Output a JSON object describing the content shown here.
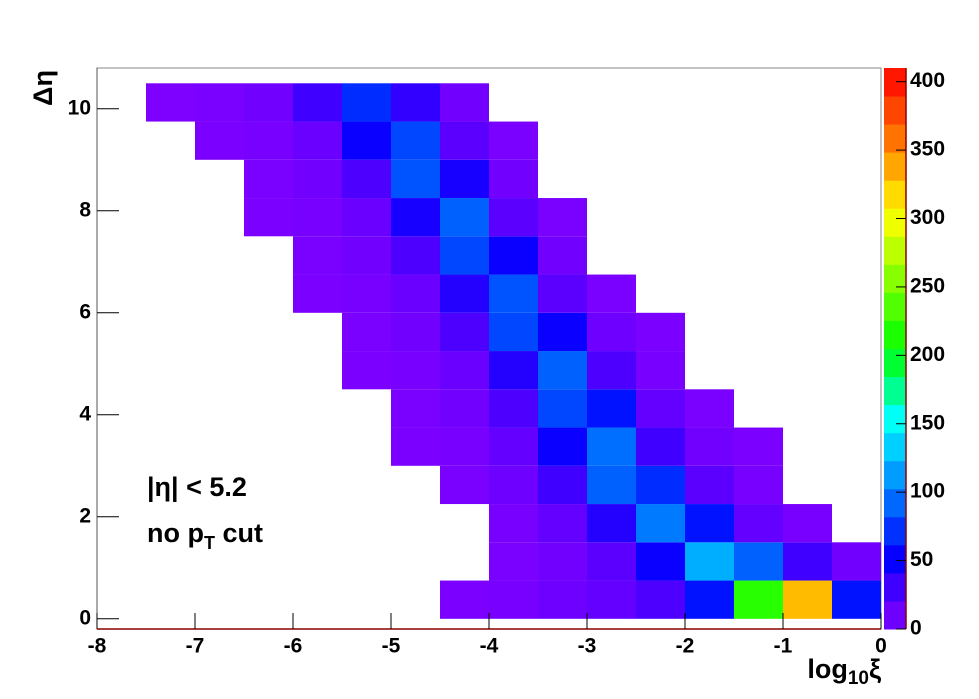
{
  "chart_data": {
    "type": "heatmap",
    "xlabel": [
      "log",
      "10",
      "ξ"
    ],
    "ylabel": "Δη",
    "annotations": [
      [
        "|η| < 5.2"
      ],
      [
        "no p",
        "T",
        " cut"
      ]
    ],
    "xbins": [
      -8,
      -7.5,
      -7,
      -6.5,
      -6,
      -5.5,
      -5,
      -4.5,
      -4,
      -3.5,
      -3,
      -2.5,
      -2,
      -1.5,
      -1,
      -0.5,
      0
    ],
    "ybins": [
      0,
      0.75,
      1.5,
      2.25,
      3,
      3.75,
      4.5,
      5.25,
      6,
      6.75,
      7.5,
      8.25,
      9,
      9.75,
      10.5
    ],
    "z": [
      [
        0,
        0,
        0,
        0,
        0,
        0,
        0,
        2,
        5,
        10,
        15,
        25,
        60,
        220,
        330,
        60
      ],
      [
        0,
        0,
        0,
        0,
        0,
        0,
        0,
        0,
        3,
        8,
        20,
        50,
        120,
        90,
        30,
        8
      ],
      [
        0,
        0,
        0,
        0,
        0,
        0,
        0,
        0,
        5,
        15,
        40,
        100,
        60,
        15,
        5,
        0
      ],
      [
        0,
        0,
        0,
        0,
        0,
        0,
        0,
        3,
        10,
        30,
        90,
        70,
        20,
        5,
        0,
        0
      ],
      [
        0,
        0,
        0,
        0,
        0,
        0,
        2,
        5,
        15,
        50,
        95,
        30,
        8,
        2,
        0,
        0
      ],
      [
        0,
        0,
        0,
        0,
        0,
        0,
        3,
        8,
        25,
        80,
        60,
        15,
        3,
        0,
        0,
        0
      ],
      [
        0,
        0,
        0,
        0,
        0,
        2,
        5,
        12,
        40,
        90,
        25,
        5,
        0,
        0,
        0,
        0
      ],
      [
        0,
        0,
        0,
        0,
        0,
        3,
        8,
        25,
        80,
        50,
        10,
        2,
        0,
        0,
        0,
        0
      ],
      [
        0,
        0,
        0,
        0,
        2,
        5,
        12,
        40,
        85,
        20,
        3,
        0,
        0,
        0,
        0,
        0
      ],
      [
        0,
        0,
        0,
        0,
        3,
        8,
        25,
        80,
        50,
        8,
        0,
        0,
        0,
        0,
        0,
        0
      ],
      [
        0,
        0,
        0,
        2,
        5,
        12,
        45,
        90,
        20,
        3,
        0,
        0,
        0,
        0,
        0,
        0
      ],
      [
        0,
        0,
        0,
        3,
        8,
        25,
        85,
        45,
        8,
        0,
        0,
        0,
        0,
        0,
        0,
        0
      ],
      [
        0,
        0,
        2,
        5,
        12,
        50,
        80,
        20,
        3,
        0,
        0,
        0,
        0,
        0,
        0,
        0
      ],
      [
        0,
        1,
        3,
        8,
        30,
        70,
        35,
        8,
        0,
        0,
        0,
        0,
        0,
        0,
        0,
        0
      ]
    ],
    "xlim": [
      -8,
      0
    ],
    "xticks": [
      -8,
      -7,
      -6,
      -5,
      -4,
      -3,
      -2,
      -1,
      0
    ],
    "ylim": [
      -0.2,
      10.8
    ],
    "yticks": [
      0,
      2,
      4,
      6,
      8,
      10
    ],
    "zlim": [
      0,
      410
    ],
    "zticks": [
      0,
      50,
      100,
      150,
      200,
      250,
      300,
      350,
      400
    ]
  }
}
